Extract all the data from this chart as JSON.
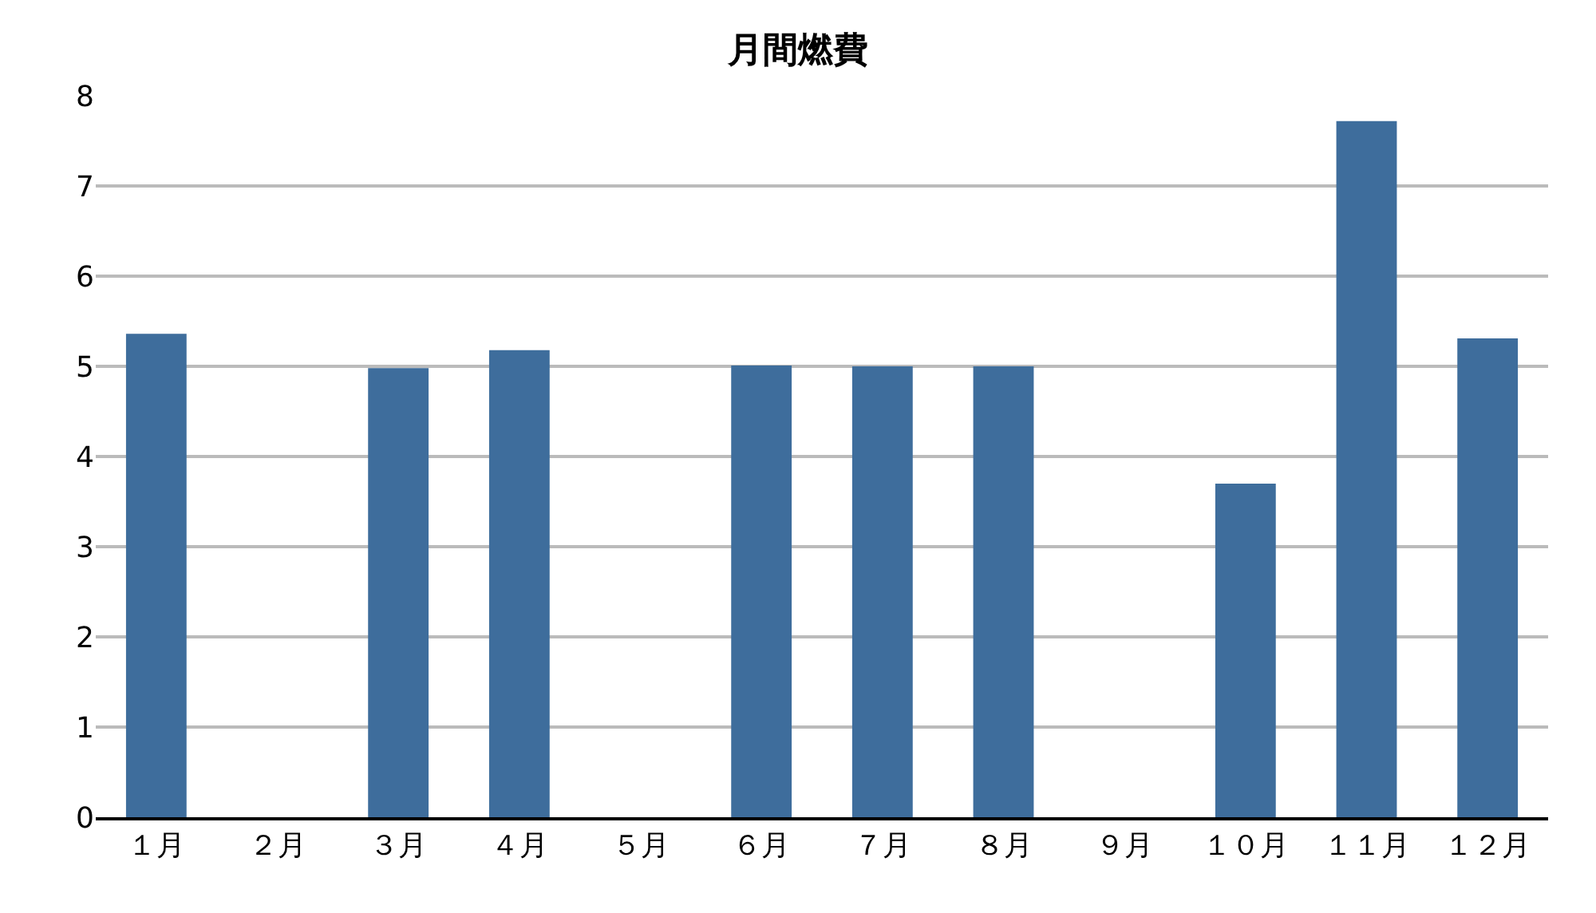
{
  "chart_data": {
    "type": "bar",
    "title": "月間燃費",
    "categories": [
      "１月",
      "２月",
      "３月",
      "４月",
      "５月",
      "６月",
      "７月",
      "８月",
      "９月",
      "１０月",
      "１１月",
      "１２月"
    ],
    "values": [
      5.36,
      null,
      4.98,
      5.18,
      null,
      5.01,
      5.0,
      5.0,
      null,
      3.7,
      7.72,
      5.31
    ],
    "color": "#3e6d9c",
    "ylim": [
      0,
      8
    ],
    "yticks": [
      0,
      1,
      2,
      3,
      4,
      5,
      6,
      7,
      8
    ],
    "grid": "y"
  }
}
